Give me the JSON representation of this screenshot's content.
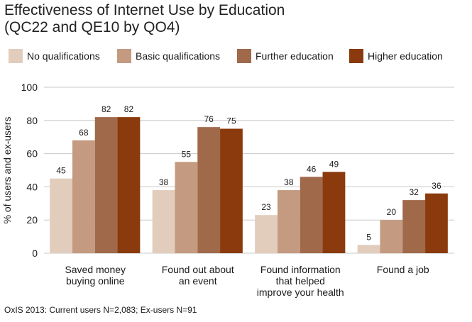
{
  "title_lines": [
    "Effectiveness of Internet Use by Education",
    "(QC22 and QE10 by QO4)"
  ],
  "footer": "OxIS 2013: Current users N=2,083; Ex-users N=91",
  "chart_data": {
    "type": "bar",
    "title": "Effectiveness of Internet Use by Education (QC22 and QE10 by QO4)",
    "xlabel": "",
    "ylabel": "% of users and ex-users",
    "ylim": [
      0,
      100
    ],
    "yticks": [
      "0",
      "20",
      "40",
      "60",
      "80",
      "100"
    ],
    "categories": [
      [
        "Saved money",
        "buying online"
      ],
      [
        "Found out about",
        "an event"
      ],
      [
        "Found information",
        "that helped",
        "improve your health"
      ],
      [
        "Found a job"
      ]
    ],
    "series": [
      {
        "name": "No qualifications",
        "color": "#e2cdbd",
        "values": [
          45,
          38,
          23,
          5
        ]
      },
      {
        "name": "Basic qualifications",
        "color": "#c49a80",
        "values": [
          68,
          55,
          38,
          20
        ]
      },
      {
        "name": "Further education",
        "color": "#a0694a",
        "values": [
          82,
          76,
          46,
          32
        ]
      },
      {
        "name": "Higher education",
        "color": "#8a3a0c",
        "values": [
          82,
          75,
          49,
          36
        ]
      }
    ],
    "grid": true,
    "legend_position": "top"
  }
}
